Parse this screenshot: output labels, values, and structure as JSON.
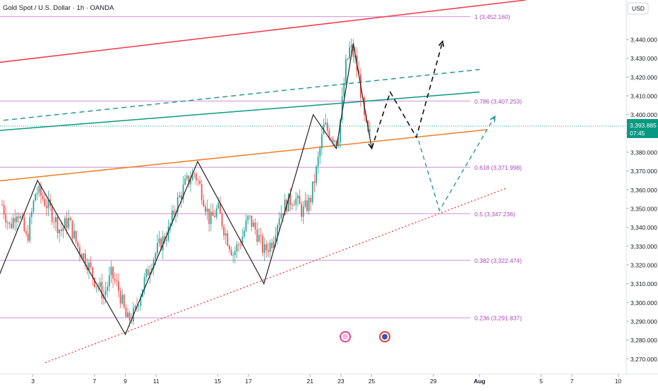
{
  "header": {
    "title": "Gold Spot / U.S. Dollar · 1h · OANDA",
    "currency": "USD"
  },
  "price_label": {
    "value": "3,393.885",
    "countdown": "07:45"
  },
  "colors": {
    "up": "#26a69a",
    "down": "#ef5350",
    "fib": "#ce93d8",
    "fib_text": "#ab47bc",
    "red_line": "#f23645",
    "teal_line": "#089981",
    "dash_teal": "#26969e",
    "orange_line": "#f57c22",
    "support": "#e53935",
    "current": "#089981",
    "zigzag": "#222222"
  },
  "chart_data": {
    "type": "candlestick",
    "title": "Gold Spot / U.S. Dollar · 1h · OANDA",
    "ylabel": "USD",
    "ylim": [
      3263,
      3461
    ],
    "y_ticks": [
      3270,
      3280,
      3290,
      3300,
      3310,
      3320,
      3330,
      3340,
      3350,
      3360,
      3370,
      3380,
      3390,
      3400,
      3410,
      3420,
      3430,
      3440
    ],
    "y_tick_labels": [
      "3,270.000",
      "3,280.000",
      "3,290.000",
      "3,300.000",
      "3,310.000",
      "3,320.000",
      "3,330.000",
      "3,340.000",
      "3,350.000",
      "3,360.000",
      "3,370.000",
      "3,380.000",
      "3,390.000",
      "3,400.000",
      "3,410.000",
      "3,420.000",
      "3,430.000",
      "3,440.000"
    ],
    "x_ticks": [
      "3",
      "7",
      "9",
      "11",
      "15",
      "17",
      "21",
      "23",
      "25",
      "29",
      "Aug",
      "5",
      "7",
      "10"
    ],
    "x_tick_days": [
      3,
      7,
      9,
      11,
      15,
      17,
      21,
      23,
      25,
      29,
      32,
      36,
      38,
      41
    ],
    "x_tick_bold": [
      false,
      false,
      false,
      false,
      false,
      false,
      false,
      false,
      false,
      false,
      true,
      false,
      false,
      false
    ],
    "fib_levels": [
      {
        "ratio": "1",
        "value": 3452.16,
        "label": "1 (3,452.160)"
      },
      {
        "ratio": "0.786",
        "value": 3407.253,
        "label": "0.786 (3,407.253)"
      },
      {
        "ratio": "0.618",
        "value": 3371.998,
        "label": "0.618 (3,371.998)"
      },
      {
        "ratio": "0.5",
        "value": 3347.236,
        "label": "0.5 (3,347.236)"
      },
      {
        "ratio": "0.382",
        "value": 3322.474,
        "label": "0.382 (3,322.474)"
      },
      {
        "ratio": "0.236",
        "value": 3291.837,
        "label": "0.236 (3,291.837)"
      }
    ],
    "current_price": 3393.885,
    "price_path": [
      {
        "x": 1.0,
        "y": 3352
      },
      {
        "x": 1.5,
        "y": 3340
      },
      {
        "x": 2.0,
        "y": 3350
      },
      {
        "x": 2.6,
        "y": 3333
      },
      {
        "x": 3.2,
        "y": 3360
      },
      {
        "x": 3.6,
        "y": 3356
      },
      {
        "x": 4.2,
        "y": 3348
      },
      {
        "x": 4.8,
        "y": 3338
      },
      {
        "x": 5.3,
        "y": 3344
      },
      {
        "x": 5.9,
        "y": 3330
      },
      {
        "x": 6.5,
        "y": 3322
      },
      {
        "x": 7.0,
        "y": 3312
      },
      {
        "x": 7.6,
        "y": 3304
      },
      {
        "x": 8.1,
        "y": 3315
      },
      {
        "x": 8.6,
        "y": 3306
      },
      {
        "x": 9.1,
        "y": 3290
      },
      {
        "x": 9.6,
        "y": 3294
      },
      {
        "x": 10.1,
        "y": 3308
      },
      {
        "x": 10.7,
        "y": 3322
      },
      {
        "x": 11.2,
        "y": 3330
      },
      {
        "x": 11.8,
        "y": 3338
      },
      {
        "x": 12.3,
        "y": 3352
      },
      {
        "x": 12.9,
        "y": 3363
      },
      {
        "x": 13.5,
        "y": 3369
      },
      {
        "x": 14.0,
        "y": 3358
      },
      {
        "x": 14.5,
        "y": 3343
      },
      {
        "x": 15.0,
        "y": 3350
      },
      {
        "x": 15.5,
        "y": 3337
      },
      {
        "x": 16.0,
        "y": 3326
      },
      {
        "x": 16.5,
        "y": 3333
      },
      {
        "x": 17.0,
        "y": 3345
      },
      {
        "x": 17.5,
        "y": 3338
      },
      {
        "x": 18.0,
        "y": 3327
      },
      {
        "x": 18.5,
        "y": 3332
      },
      {
        "x": 19.0,
        "y": 3347
      },
      {
        "x": 19.5,
        "y": 3353
      },
      {
        "x": 20.0,
        "y": 3356
      },
      {
        "x": 20.5,
        "y": 3348
      },
      {
        "x": 21.0,
        "y": 3354
      },
      {
        "x": 21.4,
        "y": 3370
      },
      {
        "x": 21.9,
        "y": 3394
      },
      {
        "x": 22.3,
        "y": 3390
      },
      {
        "x": 22.8,
        "y": 3386
      },
      {
        "x": 23.0,
        "y": 3400
      },
      {
        "x": 23.3,
        "y": 3425
      },
      {
        "x": 23.6,
        "y": 3436
      },
      {
        "x": 23.9,
        "y": 3430
      },
      {
        "x": 24.2,
        "y": 3418
      },
      {
        "x": 24.5,
        "y": 3398
      },
      {
        "x": 24.8,
        "y": 3387
      },
      {
        "x": 25.0,
        "y": 3392
      }
    ],
    "zigzag": [
      {
        "x": 0.0,
        "y": 3298
      },
      {
        "x": 3.3,
        "y": 3365
      },
      {
        "x": 9.0,
        "y": 3283
      },
      {
        "x": 13.7,
        "y": 3375
      },
      {
        "x": 18.0,
        "y": 3310
      },
      {
        "x": 21.2,
        "y": 3400
      },
      {
        "x": 22.7,
        "y": 3382
      },
      {
        "x": 23.8,
        "y": 3438
      },
      {
        "x": 25.0,
        "y": 3382
      }
    ],
    "projection_black": [
      {
        "x": 25.0,
        "y": 3382
      },
      {
        "x": 26.2,
        "y": 3412
      },
      {
        "x": 27.9,
        "y": 3388
      },
      {
        "x": 29.6,
        "y": 3439
      }
    ],
    "projection_teal": [
      {
        "x": 27.9,
        "y": 3390
      },
      {
        "x": 29.4,
        "y": 3349
      },
      {
        "x": 33.0,
        "y": 3399
      }
    ],
    "trendlines": [
      {
        "name": "red-resistance",
        "x1": 0.0,
        "y1": 3427,
        "x2": 35.0,
        "y2": 3461,
        "style": "solid"
      },
      {
        "name": "teal-channel",
        "x1": 0.0,
        "y1": 3391,
        "x2": 32.0,
        "y2": 3412,
        "style": "solid"
      },
      {
        "name": "teal-dashed",
        "x1": 0.0,
        "y1": 3396,
        "x2": 32.0,
        "y2": 3424,
        "style": "dashed"
      },
      {
        "name": "orange-support",
        "x1": 0.0,
        "y1": 3364,
        "x2": 32.5,
        "y2": 3392,
        "style": "solid"
      },
      {
        "name": "red-dotted-support",
        "x1": 3.8,
        "y1": 3268,
        "x2": 33.8,
        "y2": 3361,
        "style": "dotted"
      }
    ]
  }
}
